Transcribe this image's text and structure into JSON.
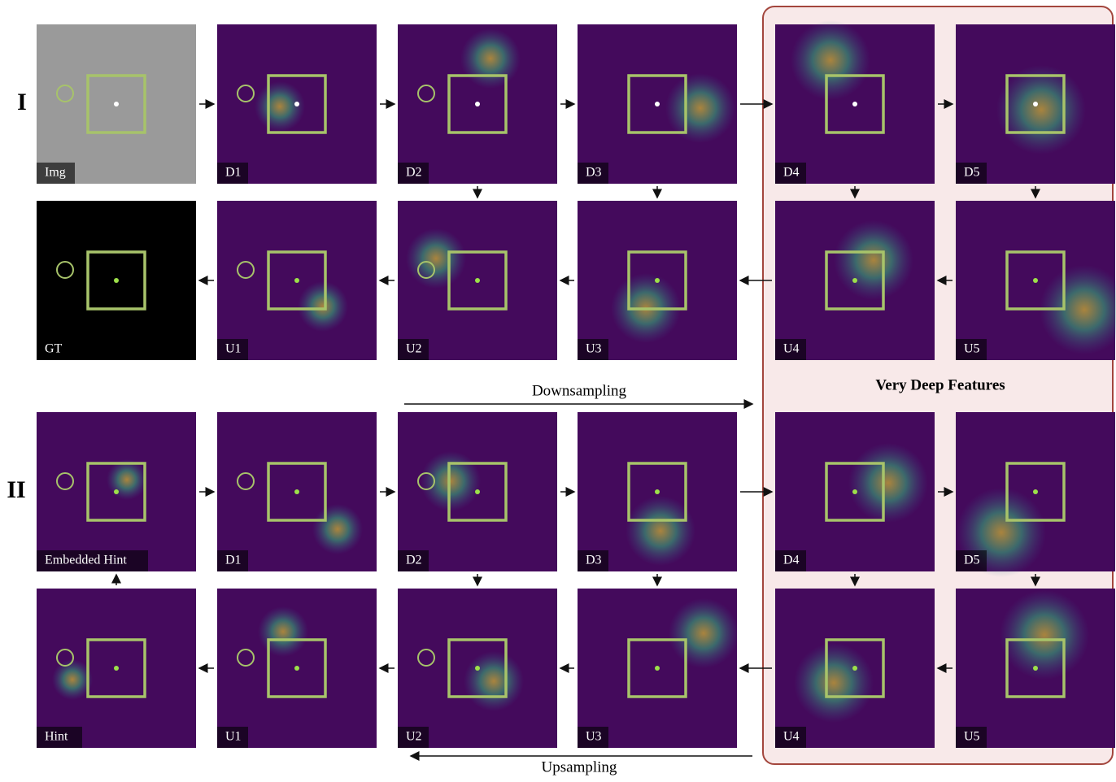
{
  "sections": [
    {
      "label": "I",
      "top": [
        "Img",
        "D1",
        "D2",
        "D3",
        "D4",
        "D5"
      ],
      "bottom": [
        "GT",
        "U1",
        "U2",
        "U3",
        "U4",
        "U5"
      ]
    },
    {
      "label": "II",
      "top": [
        "Embedded Hint",
        "D1",
        "D2",
        "D3",
        "D4",
        "D5"
      ],
      "bottom": [
        "Hint",
        "U1",
        "U2",
        "U3",
        "U4",
        "U5"
      ]
    }
  ],
  "downsampling": "Downsampling",
  "upsampling": "Upsampling",
  "panel_title": "Very Deep Features"
}
